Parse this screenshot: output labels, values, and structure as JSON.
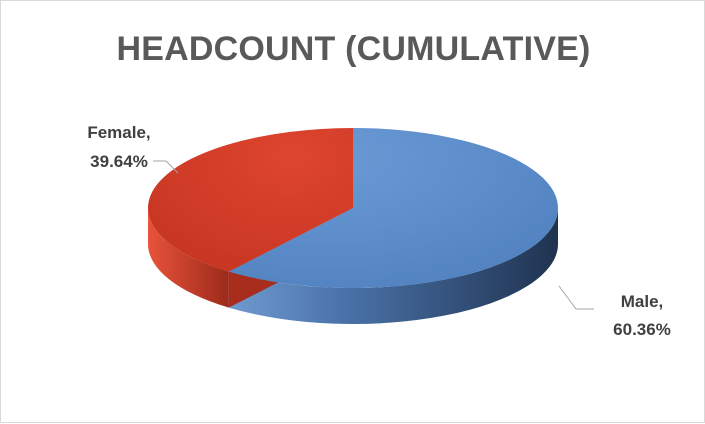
{
  "chart_data": {
    "type": "pie",
    "title": "HEADCOUNT (CUMULATIVE)",
    "slices": [
      {
        "label": "Male",
        "value": 60.36,
        "display": "60.36%",
        "color": "#5b8cc8"
      },
      {
        "label": "Female",
        "value": 39.64,
        "display": "39.64%",
        "color": "#d33b27"
      }
    ],
    "legend": "none",
    "data_labels": "category, percentage"
  }
}
